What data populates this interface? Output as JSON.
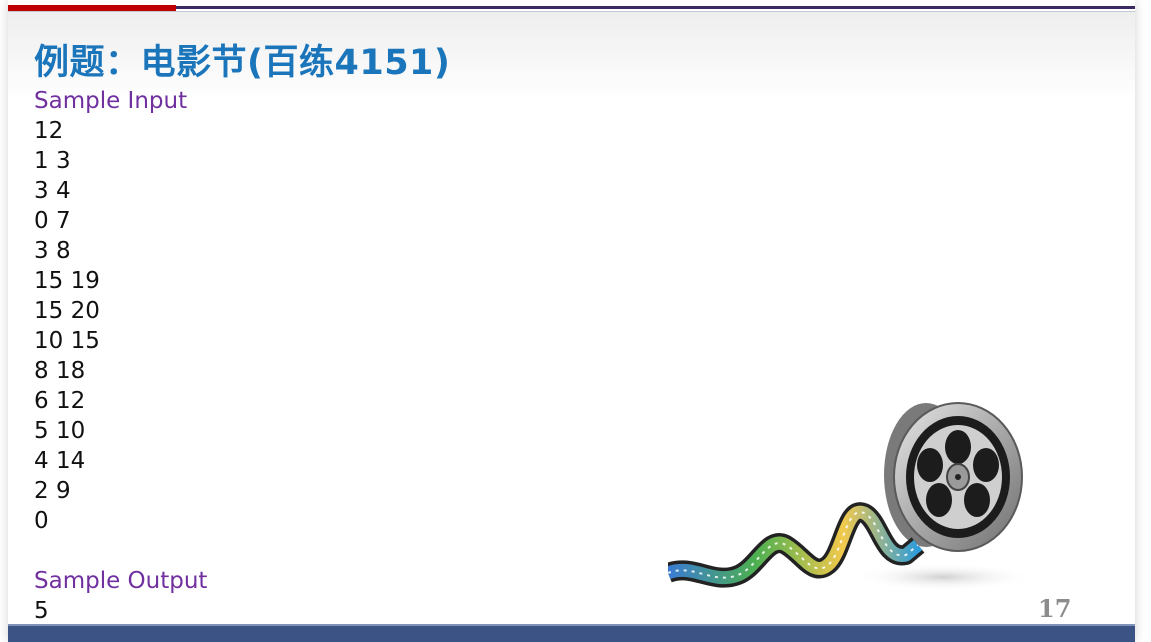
{
  "slide": {
    "title": "例题：电影节(百练4151)",
    "input_heading": "Sample Input",
    "input_lines": [
      "12",
      "1 3",
      "3 4",
      "0 7",
      "3 8",
      "15 19",
      "15 20",
      "10 15",
      "8 18",
      "6 12",
      "5 10",
      "4 14",
      "2 9",
      "0"
    ],
    "output_heading": "Sample Output",
    "output_value": "5",
    "page_number": "17"
  },
  "colors": {
    "title": "#1b75bb",
    "heading": "#7030a0",
    "accent_red": "#c00000",
    "accent_dark": "#3b2a62",
    "footer_bar": "#3b5485"
  },
  "decoration": {
    "image": "film-reel-with-filmstrip"
  }
}
